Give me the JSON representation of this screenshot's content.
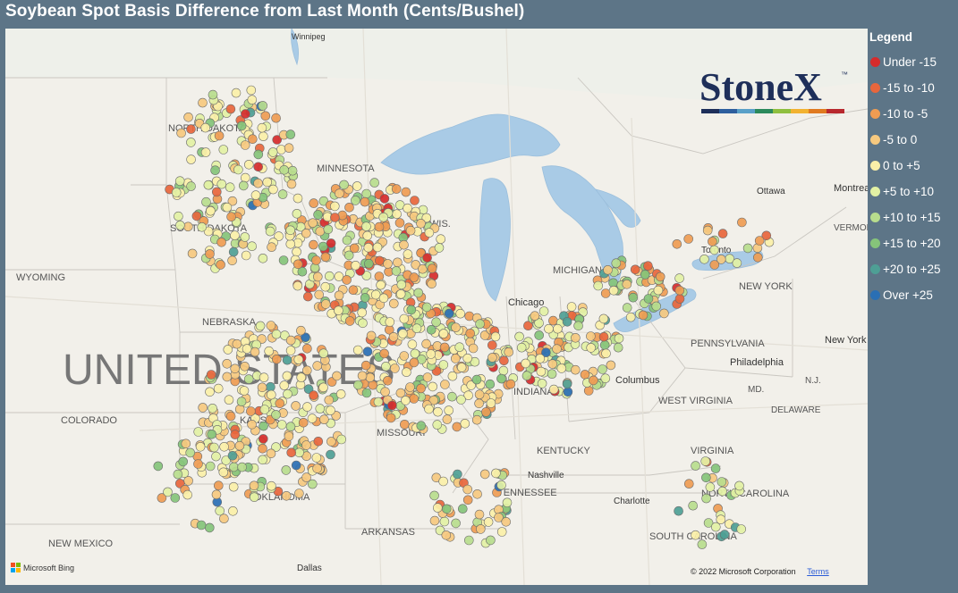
{
  "title": "Soybean Spot Basis Difference from Last Month (Cents/Bushel)",
  "legend": {
    "title": "Legend",
    "items": [
      {
        "label": "Under -15",
        "color": "#d62b2b"
      },
      {
        "label": "-15 to -10",
        "color": "#e8663c"
      },
      {
        "label": "-10 to -5",
        "color": "#ef9c52"
      },
      {
        "label": "-5 to 0",
        "color": "#f6c97f"
      },
      {
        "label": "0 to +5",
        "color": "#fbf0a8"
      },
      {
        "label": "+5 to +10",
        "color": "#e3f1a4"
      },
      {
        "label": "+10 to +15",
        "color": "#b8dd8d"
      },
      {
        "label": "+15 to +20",
        "color": "#86c47a"
      },
      {
        "label": "+20 to +25",
        "color": "#4e9f95"
      },
      {
        "label": "Over +25",
        "color": "#2a6fb4"
      }
    ]
  },
  "logo": {
    "text": "StoneX",
    "tm": "™",
    "stripe_colors": [
      "#1e2f5a",
      "#2e5f9e",
      "#5aa0c8",
      "#2c8a5c",
      "#8fbf3f",
      "#f2b230",
      "#e07a20",
      "#b8282e"
    ]
  },
  "map_labels": [
    "Winnipeg",
    "NORTH DAKOTA",
    "MINNESOTA",
    "SOUTH DAKOTA",
    "WYOMING",
    "NEBRASKA",
    "UNITED STATES",
    "COLORADO",
    "KANSAS",
    "MISSOURI",
    "OKLAHOMA",
    "ARKANSAS",
    "NEW MEXICO",
    "Dallas",
    "Chicago",
    "MICHIGAN",
    "INDIANA",
    "Columbus",
    "KENTUCKY",
    "TENNESSEE",
    "Nashville",
    "WEST VIRGINIA",
    "VIRGINIA",
    "NORTH CAROLINA",
    "Charlotte",
    "SOUTH CAROLINA",
    "PENNSYLVANIA",
    "Philadelphia",
    "NEW YORK",
    "New York",
    "Toronto",
    "Ottawa",
    "Montreal",
    "VERMONT",
    "MD.",
    "DELAWARE",
    "N.J.",
    "WIS."
  ],
  "attribution": {
    "bing": "Microsoft Bing",
    "copyright": "© 2022 Microsoft Corporation",
    "terms": "Terms"
  }
}
